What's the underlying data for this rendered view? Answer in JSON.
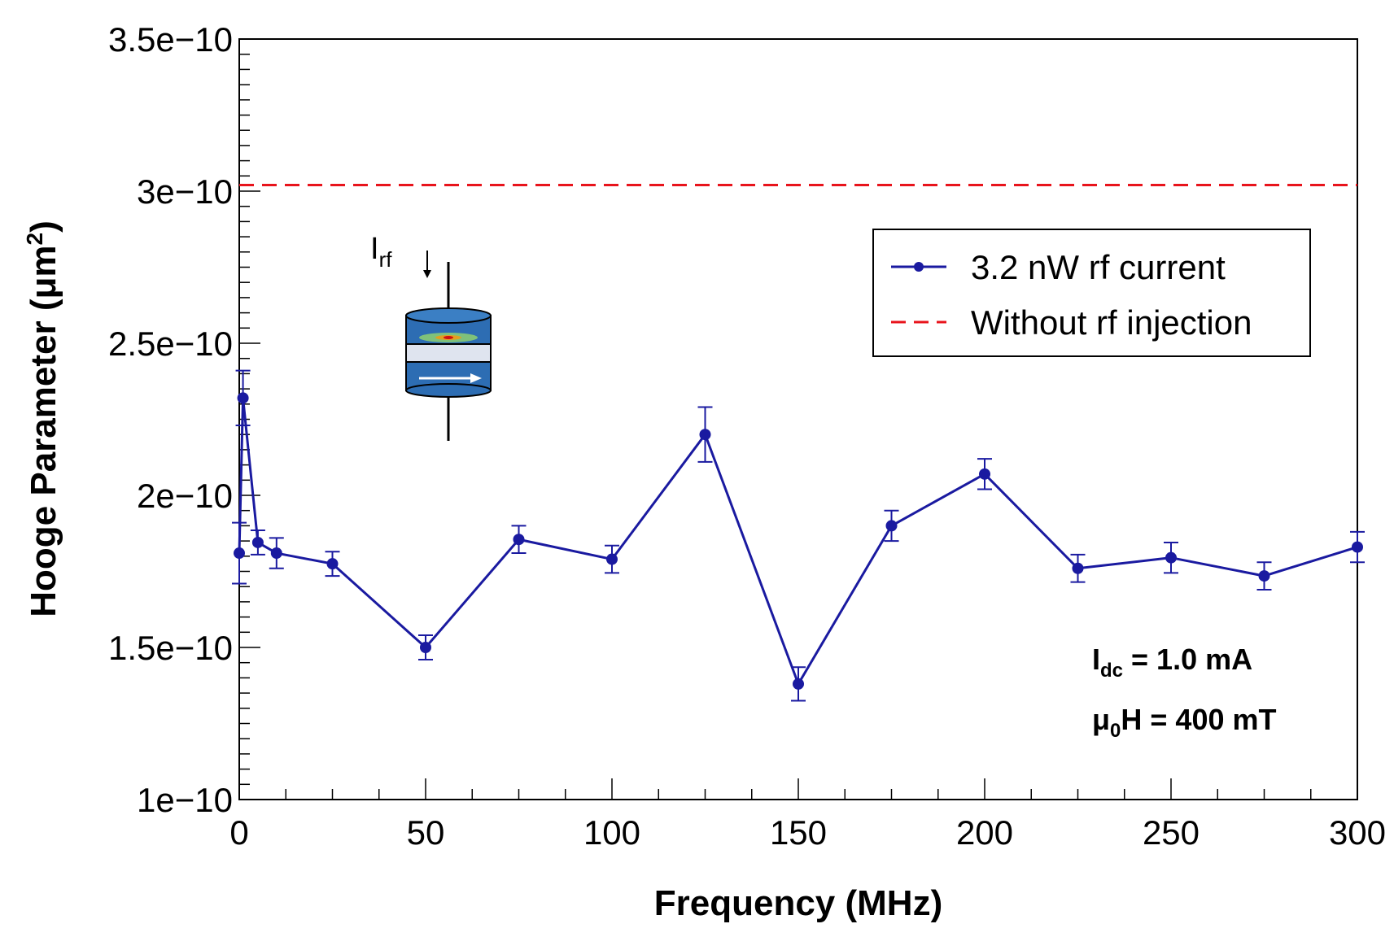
{
  "chart_data": {
    "type": "line",
    "title": "",
    "xlabel": "Frequency (MHz)",
    "ylabel_main": "Hooge Parameter (μm",
    "ylabel_sup": "2",
    "ylabel_tail": ")",
    "xlim": [
      0,
      300
    ],
    "ylim": [
      1e-10,
      3.5e-10
    ],
    "x_ticks": [
      0,
      50,
      100,
      150,
      200,
      250,
      300
    ],
    "x_tick_labels": [
      "0",
      "50",
      "100",
      "150",
      "200",
      "250",
      "300"
    ],
    "y_ticks": [
      1e-10,
      1.5e-10,
      2e-10,
      2.5e-10,
      3e-10,
      3.5e-10
    ],
    "y_tick_labels": [
      "1e−10",
      "1.5e−10",
      "2e−10",
      "2.5e−10",
      "3e−10",
      "3.5e−10"
    ],
    "series": [
      {
        "name": "3.2 nW rf current",
        "color": "#1a1aa0",
        "style": "solid-marker",
        "x": [
          0,
          1,
          5,
          10,
          25,
          50,
          75,
          100,
          125,
          150,
          175,
          200,
          225,
          250,
          275,
          300
        ],
        "y": [
          1.81e-10,
          2.32e-10,
          1.845e-10,
          1.81e-10,
          1.775e-10,
          1.5e-10,
          1.855e-10,
          1.79e-10,
          2.2e-10,
          1.38e-10,
          1.9e-10,
          2.07e-10,
          1.76e-10,
          1.795e-10,
          1.735e-10,
          1.83e-10
        ],
        "err": [
          1e-11,
          9e-12,
          4e-12,
          5e-12,
          4e-12,
          4e-12,
          4.5e-12,
          4.5e-12,
          9e-12,
          5.5e-12,
          5e-12,
          5e-12,
          4.5e-12,
          5e-12,
          4.5e-12,
          5e-12
        ]
      },
      {
        "name": "Without rf injection",
        "color": "#e8141c",
        "style": "dashed",
        "y_const": 3.02e-10
      }
    ],
    "legend": {
      "placement": "top-right",
      "entries": [
        "3.2 nW rf current",
        "Without rf injection"
      ]
    },
    "annotations": {
      "idc": {
        "main": "I",
        "sub": "dc",
        "tail": " = 1.0 mA"
      },
      "field": {
        "main": "μ",
        "sub": "0",
        "tail": "H = 400 mT"
      },
      "irf": {
        "main": "I",
        "sub": "rf"
      }
    }
  }
}
